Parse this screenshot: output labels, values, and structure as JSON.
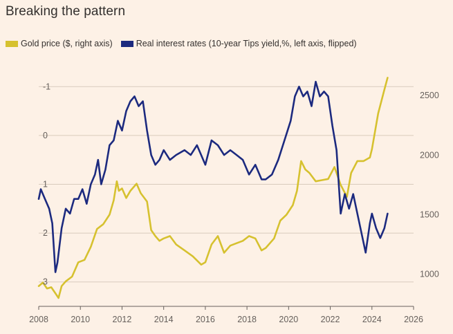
{
  "header": {
    "title": "Breaking the pattern"
  },
  "colors": {
    "gold": "#d6c12f",
    "rates": "#1c2a7f",
    "grid": "#d9cbbd",
    "background": "#fdf1e6"
  },
  "chart_data": {
    "type": "line",
    "title": "Breaking the pattern",
    "legend_position": "top-left",
    "grid": true,
    "x_axis": {
      "range": [
        2008,
        2026
      ],
      "ticks": [
        "2008",
        "2010",
        "2012",
        "2014",
        "2016",
        "2018",
        "2020",
        "2022",
        "2024",
        "2026"
      ]
    },
    "left_axis": {
      "range": [
        3.5,
        -1.5
      ],
      "flipped": true,
      "ticks": [
        -1,
        0,
        1,
        2,
        3
      ],
      "tick_labels": [
        "-1",
        "0",
        "1",
        "2",
        "3"
      ]
    },
    "right_axis": {
      "range": [
        730,
        2780
      ],
      "ticks": [
        1000,
        1500,
        2000,
        2500
      ],
      "tick_labels": [
        "1000",
        "1500",
        "2000",
        "2500"
      ]
    },
    "series": [
      {
        "name": "Gold price ($, right axis)",
        "axis": "right",
        "color": "#d6c12f",
        "x": [
          2008.0,
          2008.2,
          2008.4,
          2008.6,
          2008.8,
          2008.95,
          2009.1,
          2009.3,
          2009.6,
          2009.9,
          2010.2,
          2010.5,
          2010.8,
          2011.1,
          2011.4,
          2011.6,
          2011.75,
          2011.85,
          2012.0,
          2012.2,
          2012.4,
          2012.7,
          2012.9,
          2013.2,
          2013.4,
          2013.6,
          2013.8,
          2014.0,
          2014.3,
          2014.6,
          2015.0,
          2015.4,
          2015.8,
          2016.0,
          2016.3,
          2016.6,
          2016.9,
          2017.2,
          2017.5,
          2017.8,
          2018.1,
          2018.4,
          2018.7,
          2018.9,
          2019.3,
          2019.6,
          2019.9,
          2020.2,
          2020.4,
          2020.6,
          2020.8,
          2021.0,
          2021.3,
          2021.6,
          2021.9,
          2022.2,
          2022.5,
          2022.8,
          2023.0,
          2023.3,
          2023.6,
          2023.9,
          2024.0,
          2024.3,
          2024.6,
          2024.75
        ],
        "values": [
          900,
          930,
          880,
          890,
          840,
          800,
          900,
          940,
          980,
          1100,
          1120,
          1230,
          1380,
          1420,
          1500,
          1620,
          1780,
          1700,
          1720,
          1640,
          1700,
          1760,
          1680,
          1610,
          1370,
          1320,
          1280,
          1300,
          1320,
          1250,
          1200,
          1150,
          1080,
          1100,
          1250,
          1320,
          1180,
          1240,
          1260,
          1280,
          1320,
          1300,
          1200,
          1220,
          1300,
          1450,
          1500,
          1580,
          1700,
          1950,
          1880,
          1850,
          1780,
          1790,
          1800,
          1900,
          1750,
          1650,
          1850,
          1950,
          1950,
          1980,
          2050,
          2350,
          2550,
          2650
        ]
      },
      {
        "name": "Real interest rates (10-year Tips yield,%, left axis, flipped)",
        "axis": "left",
        "color": "#1c2a7f",
        "x": [
          2008.0,
          2008.1,
          2008.3,
          2008.5,
          2008.65,
          2008.8,
          2008.9,
          2009.1,
          2009.3,
          2009.5,
          2009.7,
          2009.9,
          2010.1,
          2010.3,
          2010.5,
          2010.7,
          2010.85,
          2011.0,
          2011.2,
          2011.4,
          2011.6,
          2011.8,
          2012.0,
          2012.2,
          2012.4,
          2012.6,
          2012.8,
          2013.0,
          2013.2,
          2013.4,
          2013.6,
          2013.8,
          2014.0,
          2014.3,
          2014.6,
          2015.0,
          2015.3,
          2015.6,
          2016.0,
          2016.3,
          2016.6,
          2016.9,
          2017.2,
          2017.5,
          2017.8,
          2018.1,
          2018.4,
          2018.7,
          2018.9,
          2019.2,
          2019.5,
          2019.8,
          2020.1,
          2020.3,
          2020.5,
          2020.7,
          2020.9,
          2021.1,
          2021.3,
          2021.5,
          2021.7,
          2021.9,
          2022.1,
          2022.3,
          2022.5,
          2022.7,
          2022.9,
          2023.1,
          2023.3,
          2023.5,
          2023.7,
          2023.9,
          2024.0,
          2024.2,
          2024.4,
          2024.6,
          2024.75
        ],
        "values": [
          1.3,
          1.1,
          1.3,
          1.5,
          1.8,
          2.8,
          2.6,
          1.9,
          1.5,
          1.6,
          1.3,
          1.3,
          1.1,
          1.4,
          1.0,
          0.8,
          0.5,
          1.0,
          0.7,
          0.2,
          0.1,
          -0.3,
          -0.1,
          -0.5,
          -0.7,
          -0.8,
          -0.6,
          -0.7,
          -0.1,
          0.4,
          0.6,
          0.5,
          0.3,
          0.5,
          0.4,
          0.3,
          0.4,
          0.2,
          0.6,
          0.1,
          0.2,
          0.4,
          0.3,
          0.4,
          0.5,
          0.8,
          0.6,
          0.9,
          0.9,
          0.8,
          0.5,
          0.1,
          -0.3,
          -0.8,
          -1.0,
          -0.8,
          -0.9,
          -0.6,
          -1.1,
          -0.8,
          -0.9,
          -0.8,
          -0.2,
          0.3,
          1.6,
          1.2,
          1.5,
          1.2,
          1.6,
          2.0,
          2.4,
          1.8,
          1.6,
          1.9,
          2.1,
          1.9,
          1.6
        ]
      }
    ]
  }
}
